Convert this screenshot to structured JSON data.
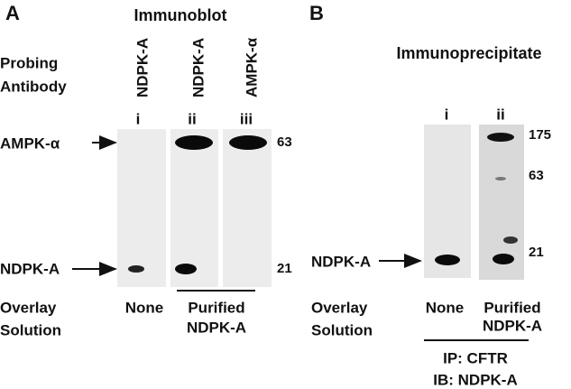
{
  "panel_a": {
    "letter": "A",
    "title": "Immunoblot",
    "probing_label": [
      "Probing",
      "Antibody"
    ],
    "lanes": [
      {
        "antibody": "NDPK-A",
        "label": "i"
      },
      {
        "antibody": "NDPK-A",
        "label": "ii"
      },
      {
        "antibody": "AMPK-α",
        "label": "iii"
      }
    ],
    "band_labels": [
      "AMPK-α",
      "NDPK-A"
    ],
    "markers": [
      63,
      21
    ],
    "overlay_label": [
      "Overlay",
      "Solution"
    ],
    "overlay": {
      "none": "None",
      "purified": [
        "Purified",
        "NDPK-A"
      ]
    }
  },
  "panel_b": {
    "letter": "B",
    "title": "Immunoprecipitate",
    "lanes": [
      "i",
      "ii"
    ],
    "markers": [
      175,
      63,
      21
    ],
    "band_label": "NDPK-A",
    "overlay_label": [
      "Overlay",
      "Solution"
    ],
    "overlay": {
      "none": "None",
      "purified": [
        "Purified",
        "NDPK-A"
      ]
    },
    "footer": [
      "IP: CFTR",
      "IB: NDPK-A"
    ]
  }
}
